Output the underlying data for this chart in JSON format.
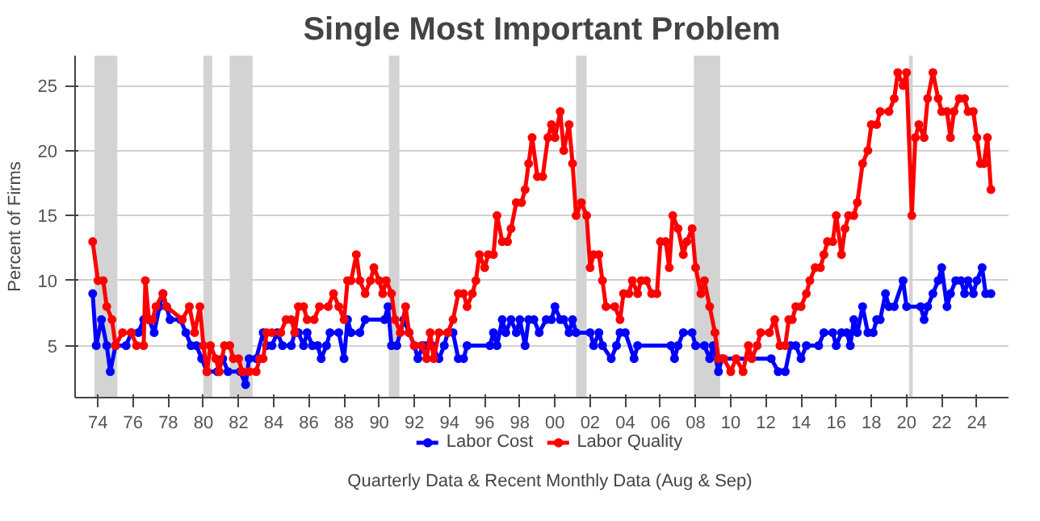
{
  "chart_data": {
    "type": "line",
    "title": "Single Most Important Problem",
    "ylabel": "Percent of Firms",
    "annotations": [
      "Quarterly Data & Recent Monthly Data (Aug & Sep)"
    ],
    "xlim": [
      1972.7,
      2025.8
    ],
    "ylim": [
      1,
      27.3
    ],
    "yticks": [
      5,
      10,
      15,
      20,
      25
    ],
    "xticks": [
      {
        "value": 1974,
        "label": "74"
      },
      {
        "value": 1976,
        "label": "76"
      },
      {
        "value": 1978,
        "label": "78"
      },
      {
        "value": 1980,
        "label": "80"
      },
      {
        "value": 1982,
        "label": "82"
      },
      {
        "value": 1984,
        "label": "84"
      },
      {
        "value": 1986,
        "label": "86"
      },
      {
        "value": 1988,
        "label": "88"
      },
      {
        "value": 1990,
        "label": "90"
      },
      {
        "value": 1992,
        "label": "92"
      },
      {
        "value": 1994,
        "label": "94"
      },
      {
        "value": 1996,
        "label": "96"
      },
      {
        "value": 1998,
        "label": "98"
      },
      {
        "value": 2000,
        "label": "00"
      },
      {
        "value": 2002,
        "label": "02"
      },
      {
        "value": 2004,
        "label": "04"
      },
      {
        "value": 2006,
        "label": "06"
      },
      {
        "value": 2008,
        "label": "08"
      },
      {
        "value": 2010,
        "label": "10"
      },
      {
        "value": 2012,
        "label": "12"
      },
      {
        "value": 2014,
        "label": "14"
      },
      {
        "value": 2016,
        "label": "16"
      },
      {
        "value": 2018,
        "label": "18"
      },
      {
        "value": 2020,
        "label": "20"
      },
      {
        "value": 2022,
        "label": "22"
      },
      {
        "value": 2024,
        "label": "24"
      }
    ],
    "grid": "y",
    "legend": "bottom",
    "marker": "circle",
    "line_style": "solid",
    "bands": [
      {
        "axis": "x",
        "from": 1973.8,
        "to": 1975.1,
        "color": "#d3d3d3"
      },
      {
        "axis": "x",
        "from": 1980.0,
        "to": 1980.5,
        "color": "#d3d3d3"
      },
      {
        "axis": "x",
        "from": 1981.5,
        "to": 1982.8,
        "color": "#d3d3d3"
      },
      {
        "axis": "x",
        "from": 1990.55,
        "to": 1991.15,
        "color": "#d3d3d3"
      },
      {
        "axis": "x",
        "from": 2001.2,
        "to": 2001.8,
        "color": "#d3d3d3"
      },
      {
        "axis": "x",
        "from": 2007.9,
        "to": 2009.4,
        "color": "#d3d3d3"
      },
      {
        "axis": "x",
        "from": 2020.15,
        "to": 2020.35,
        "color": "#d3d3d3"
      }
    ],
    "series": [
      {
        "name": "Labor Cost",
        "color": "#0000ff",
        "x": [
          1973.7,
          1973.9,
          1974.2,
          1974.5,
          1974.7,
          1975.0,
          1975.6,
          1975.9,
          1976.3,
          1976.6,
          1976.9,
          1977.2,
          1977.5,
          1977.7,
          1977.9,
          1978.1,
          1978.7,
          1979.0,
          1979.3,
          1979.6,
          1979.9,
          1980.2,
          1980.8,
          1981.1,
          1981.4,
          1982.1,
          1982.4,
          1982.6,
          1983.0,
          1983.4,
          1983.6,
          1983.9,
          1984.2,
          1984.5,
          1985.0,
          1985.2,
          1985.4,
          1985.7,
          1985.9,
          1986.2,
          1986.5,
          1986.7,
          1987.0,
          1987.2,
          1987.7,
          1988.0,
          1988.2,
          1988.4,
          1988.9,
          1989.2,
          1990.3,
          1990.5,
          1990.7,
          1991.0,
          1991.4,
          1991.7,
          1992.0,
          1992.2,
          1992.5,
          1992.7,
          1993.0,
          1993.4,
          1993.7,
          1993.9,
          1994.2,
          1994.5,
          1994.8,
          1995.0,
          1996.3,
          1996.5,
          1996.7,
          1997.0,
          1997.2,
          1997.5,
          1997.8,
          1998.0,
          1998.3,
          1998.5,
          1998.8,
          1999.1,
          1999.5,
          1999.8,
          2000.0,
          2000.3,
          2000.5,
          2000.8,
          2001.0,
          2001.2,
          2002.0,
          2002.2,
          2002.5,
          2002.7,
          2003.2,
          2003.5,
          2003.7,
          2004.0,
          2004.5,
          2004.7,
          2006.6,
          2006.8,
          2007.0,
          2007.3,
          2007.8,
          2008.0,
          2008.5,
          2008.8,
          2009.0,
          2009.3,
          2009.5,
          2012.3,
          2012.7,
          2013.1,
          2013.4,
          2013.7,
          2014.0,
          2014.3,
          2015.0,
          2015.3,
          2015.8,
          2016.0,
          2016.3,
          2016.6,
          2016.8,
          2017.0,
          2017.2,
          2017.5,
          2017.8,
          2018.1,
          2018.3,
          2018.5,
          2018.8,
          2019.0,
          2019.3,
          2019.8,
          2020.0,
          2020.8,
          2021.0,
          2021.2,
          2021.5,
          2021.8,
          2022.0,
          2022.3,
          2022.5,
          2022.8,
          2023.1,
          2023.3,
          2023.5,
          2023.8,
          2024.0,
          2024.3,
          2024.5,
          2024.8
        ],
        "values": [
          9,
          5,
          7,
          5,
          3,
          5,
          5,
          6,
          6,
          7,
          7,
          6,
          8,
          9,
          8,
          7,
          7,
          6,
          5,
          5,
          4,
          3,
          3,
          4,
          3,
          3,
          2,
          4,
          4,
          6,
          5,
          5,
          6,
          5,
          5,
          6,
          6,
          5,
          6,
          5,
          5,
          4,
          5,
          6,
          6,
          4,
          7,
          6,
          6,
          7,
          7,
          8,
          5,
          5,
          7,
          6,
          5,
          4,
          5,
          5,
          5,
          4,
          5,
          6,
          6,
          4,
          4,
          5,
          5,
          6,
          5,
          7,
          6,
          7,
          6,
          7,
          5,
          7,
          7,
          6,
          7,
          7,
          8,
          7,
          7,
          6,
          7,
          6,
          6,
          5,
          6,
          5,
          4,
          5,
          6,
          6,
          4,
          5,
          5,
          4,
          5,
          6,
          6,
          5,
          5,
          4,
          5,
          3,
          4,
          4,
          3,
          3,
          5,
          5,
          4,
          5,
          5,
          6,
          6,
          5,
          6,
          6,
          5,
          7,
          6,
          8,
          6,
          6,
          7,
          7,
          9,
          8,
          8,
          10,
          8,
          8,
          7,
          8,
          9,
          10,
          11,
          8,
          9,
          10,
          10,
          9,
          10,
          9,
          10,
          11,
          9,
          9
        ]
      },
      {
        "name": "Labor Quality",
        "color": "#ff0000",
        "x": [
          1973.7,
          1974.0,
          1974.3,
          1974.5,
          1974.8,
          1975.0,
          1975.4,
          1975.9,
          1976.2,
          1976.6,
          1976.7,
          1976.9,
          1977.1,
          1977.3,
          1977.7,
          1977.9,
          1978.8,
          1979.2,
          1979.5,
          1979.8,
          1980.0,
          1980.2,
          1980.4,
          1980.7,
          1980.9,
          1981.2,
          1981.5,
          1981.7,
          1982.0,
          1982.2,
          1982.6,
          1983.0,
          1983.2,
          1983.4,
          1983.6,
          1983.9,
          1984.4,
          1984.7,
          1985.0,
          1985.2,
          1985.4,
          1985.7,
          1985.9,
          1986.3,
          1986.6,
          1987.1,
          1987.4,
          1987.7,
          1988.0,
          1988.2,
          1988.4,
          1988.7,
          1988.9,
          1989.2,
          1989.5,
          1989.7,
          1990.0,
          1990.2,
          1990.4,
          1990.7,
          1990.9,
          1991.2,
          1991.5,
          1991.7,
          1992.0,
          1992.4,
          1992.7,
          1992.9,
          1993.1,
          1993.4,
          1993.9,
          1994.2,
          1994.5,
          1994.8,
          1995.0,
          1995.3,
          1995.5,
          1995.7,
          1996.0,
          1996.2,
          1996.5,
          1996.7,
          1997.0,
          1997.3,
          1997.5,
          1997.8,
          1998.1,
          1998.3,
          1998.5,
          1998.7,
          1999.0,
          1999.3,
          1999.6,
          1999.8,
          2000.0,
          2000.3,
          2000.5,
          2000.8,
          2001.0,
          2001.2,
          2001.5,
          2001.8,
          2002.0,
          2002.2,
          2002.5,
          2002.7,
          2002.9,
          2003.4,
          2003.7,
          2003.9,
          2004.2,
          2004.4,
          2004.7,
          2004.9,
          2005.2,
          2005.5,
          2005.8,
          2006.0,
          2006.3,
          2006.5,
          2006.7,
          2007.0,
          2007.3,
          2007.5,
          2007.8,
          2008.0,
          2008.3,
          2008.5,
          2008.8,
          2009.1,
          2009.3,
          2009.6,
          2010.0,
          2010.3,
          2010.7,
          2011.0,
          2011.2,
          2011.5,
          2011.7,
          2012.2,
          2012.5,
          2012.8,
          2013.1,
          2013.3,
          2013.5,
          2013.7,
          2014.0,
          2014.3,
          2014.5,
          2014.8,
          2015.1,
          2015.3,
          2015.5,
          2015.8,
          2016.0,
          2016.3,
          2016.5,
          2016.7,
          2017.0,
          2017.2,
          2017.5,
          2017.8,
          2018.0,
          2018.3,
          2018.5,
          2019.0,
          2019.3,
          2019.5,
          2019.8,
          2020.0,
          2020.3,
          2020.5,
          2020.7,
          2021.0,
          2021.2,
          2021.5,
          2021.8,
          2022.0,
          2022.3,
          2022.5,
          2022.7,
          2023.0,
          2023.3,
          2023.5,
          2023.8,
          2024.0,
          2024.2,
          2024.4,
          2024.6,
          2024.8
        ],
        "values": [
          13,
          10,
          10,
          8,
          7,
          5,
          6,
          6,
          5,
          5,
          10,
          7,
          7,
          8,
          9,
          8,
          7,
          8,
          6,
          8,
          5,
          3,
          5,
          4,
          3,
          5,
          5,
          4,
          4,
          3,
          3,
          3,
          4,
          4,
          6,
          6,
          6,
          7,
          7,
          6,
          8,
          8,
          7,
          7,
          8,
          8,
          9,
          8,
          7,
          10,
          10,
          12,
          10,
          9,
          10,
          11,
          10,
          9,
          10,
          9,
          7,
          6,
          8,
          6,
          5,
          5,
          4,
          6,
          4,
          6,
          6,
          7,
          9,
          9,
          8,
          9,
          10,
          12,
          11,
          12,
          12,
          15,
          13,
          13,
          14,
          16,
          16,
          17,
          19,
          21,
          18,
          18,
          21,
          22,
          21,
          23,
          20,
          22,
          19,
          15,
          16,
          15,
          11,
          12,
          12,
          10,
          8,
          8,
          7,
          9,
          9,
          10,
          9,
          10,
          10,
          9,
          9,
          13,
          13,
          11,
          15,
          14,
          12,
          13,
          14,
          11,
          9,
          10,
          8,
          6,
          4,
          4,
          3,
          4,
          3,
          5,
          4,
          5,
          6,
          6,
          7,
          5,
          5,
          7,
          7,
          8,
          8,
          9,
          10,
          11,
          11,
          12,
          13,
          13,
          15,
          12,
          14,
          15,
          15,
          16,
          19,
          20,
          22,
          22,
          23,
          23,
          24,
          26,
          25,
          26,
          15,
          21,
          22,
          21,
          24,
          26,
          24,
          23,
          23,
          21,
          23,
          24,
          24,
          23,
          23,
          21,
          19,
          19,
          21,
          17
        ]
      }
    ]
  }
}
